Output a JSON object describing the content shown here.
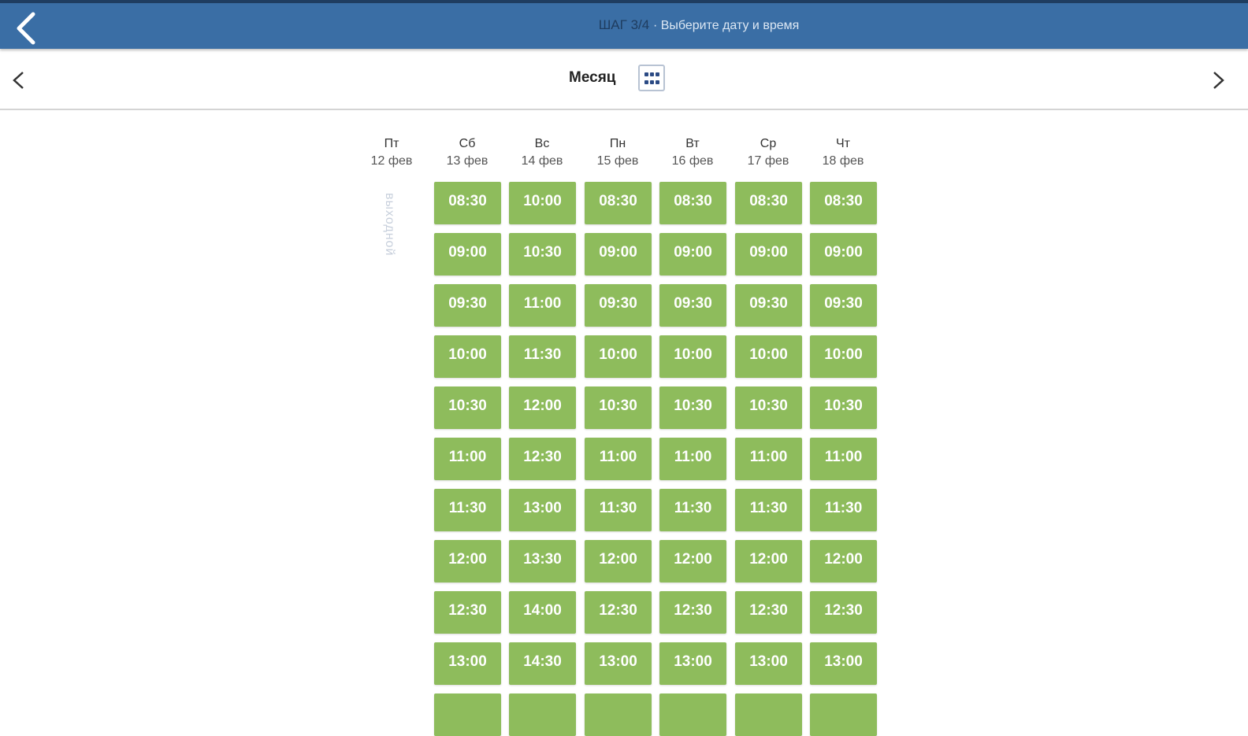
{
  "header": {
    "step": "ШАГ 3/4",
    "subtitle": "· Выберите дату и время",
    "color": "#3a6ea5"
  },
  "nav": {
    "view_label": "Месяц",
    "prev": "chevron-left-icon",
    "next": "chevron-right-icon",
    "calendar_icon": "calendar-grid-icon"
  },
  "slot_color": "#8ebc5c",
  "days": [
    {
      "weekday": "Пт",
      "date": "12 фев",
      "day_off": "выходной",
      "slots": []
    },
    {
      "weekday": "Сб",
      "date": "13 фев",
      "slots": [
        "08:30",
        "09:00",
        "09:30",
        "10:00",
        "10:30",
        "11:00",
        "11:30",
        "12:00",
        "12:30",
        "13:00"
      ]
    },
    {
      "weekday": "Вс",
      "date": "14 фев",
      "slots": [
        "10:00",
        "10:30",
        "11:00",
        "11:30",
        "12:00",
        "12:30",
        "13:00",
        "13:30",
        "14:00",
        "14:30"
      ]
    },
    {
      "weekday": "Пн",
      "date": "15 фев",
      "slots": [
        "08:30",
        "09:00",
        "09:30",
        "10:00",
        "10:30",
        "11:00",
        "11:30",
        "12:00",
        "12:30",
        "13:00"
      ]
    },
    {
      "weekday": "Вт",
      "date": "16 фев",
      "slots": [
        "08:30",
        "09:00",
        "09:30",
        "10:00",
        "10:30",
        "11:00",
        "11:30",
        "12:00",
        "12:30",
        "13:00"
      ]
    },
    {
      "weekday": "Ср",
      "date": "17 фев",
      "slots": [
        "08:30",
        "09:00",
        "09:30",
        "10:00",
        "10:30",
        "11:00",
        "11:30",
        "12:00",
        "12:30",
        "13:00"
      ]
    },
    {
      "weekday": "Чт",
      "date": "18 фев",
      "slots": [
        "08:30",
        "09:00",
        "09:30",
        "10:00",
        "10:30",
        "11:00",
        "11:30",
        "12:00",
        "12:30",
        "13:00"
      ]
    }
  ]
}
